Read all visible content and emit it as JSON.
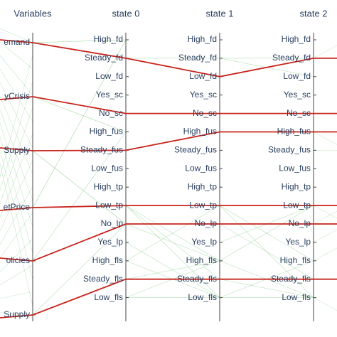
{
  "columns": [
    {
      "id": "variables",
      "header": "Variables",
      "labels": [
        "emand",
        "yCrisis",
        "Supply",
        "etPrice",
        "olicies",
        "Supply"
      ]
    },
    {
      "id": "state0",
      "header": "state 0",
      "labels": [
        "High_fd",
        "Steady_fd",
        "Low_fd",
        "Yes_sc",
        "No_sc",
        "High_fus",
        "Steady_fus",
        "Low_fus",
        "High_tp",
        "Low_tp",
        "No_lp",
        "Yes_lp",
        "High_fls",
        "Steady_fls",
        "Low_fls"
      ]
    },
    {
      "id": "state1",
      "header": "state 1",
      "labels": [
        "High_fd",
        "Steady_fd",
        "Low_fd",
        "Yes_sc",
        "No_sc",
        "High_fus",
        "Steady_fus",
        "Low_fus",
        "High_tp",
        "Low_tp",
        "No_lp",
        "Yes_lp",
        "High_fls",
        "Steady_fls",
        "Low_fls"
      ]
    },
    {
      "id": "state2",
      "header": "state 2",
      "labels": [
        "High_fd",
        "Steady_fd",
        "Low_fd",
        "Yes_sc",
        "No_sc",
        "High_fus",
        "Steady_fus",
        "Low_fus",
        "High_tp",
        "Low_tp",
        "No_lp",
        "Yes_lp",
        "High_fls",
        "Steady_fls",
        "Low_fls"
      ]
    }
  ],
  "highlight_paths": [
    [
      "emand:0",
      "Steady_fd",
      "Low_fd",
      "Steady_fd"
    ],
    [
      "yCrisis:1",
      "No_sc",
      "No_sc",
      "No_sc"
    ],
    [
      "Supply:2",
      "Steady_fus",
      "High_fus",
      "High_fus"
    ],
    [
      "etPrice:3",
      "Low_tp",
      "Low_tp",
      "Low_tp"
    ],
    [
      "olicies:4",
      "No_lp",
      "No_lp",
      "No_lp"
    ],
    [
      "Supply:5",
      "Steady_fls",
      "Steady_fls",
      "Steady_fls"
    ]
  ],
  "colors": {
    "highlight": "#c8241c",
    "background_lines": "#9ad39a",
    "axis": "#444444",
    "text": "#2a3f5f"
  }
}
